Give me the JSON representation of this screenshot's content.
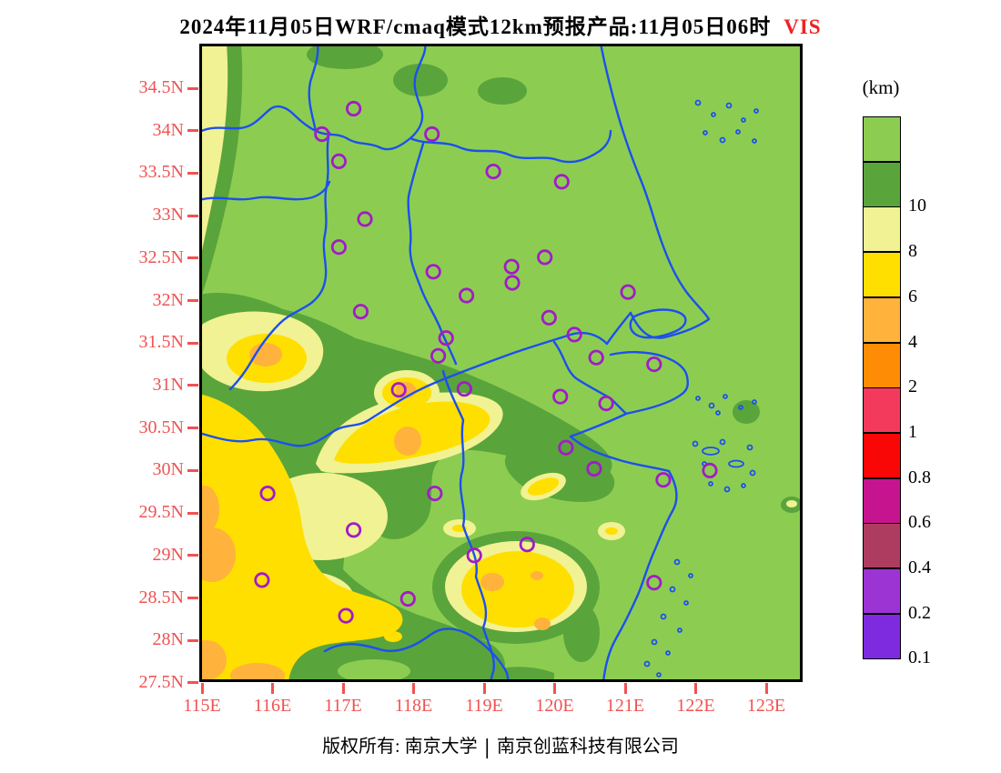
{
  "title": {
    "main": "2024年11月05日WRF/cmaq模式12km预报产品:11月05日06时",
    "highlight": "VIS"
  },
  "footer": {
    "left": "版权所有: 南京大学",
    "divider": "|",
    "right": "南京创蓝科技有限公司"
  },
  "legend": {
    "title": "(km)",
    "blocks": [
      {
        "color_key": "vis_gt10",
        "label": ""
      },
      {
        "color_key": "vis_8_10",
        "label": "10"
      },
      {
        "color_key": "vis_6_8",
        "label": "8"
      },
      {
        "color_key": "vis_4_6",
        "label": "6"
      },
      {
        "color_key": "vis_2_4",
        "label": "4"
      },
      {
        "color_key": "vis_1_2",
        "label": "2"
      },
      {
        "color_key": "vis_08_1",
        "label": "1"
      },
      {
        "color_key": "vis_06_08",
        "label": "0.8"
      },
      {
        "color_key": "vis_04_06",
        "label": "0.6"
      },
      {
        "color_key": "vis_02_04",
        "label": "0.4"
      },
      {
        "color_key": "vis_01_02",
        "label": "0.2"
      },
      {
        "color_key": "vis_lt01",
        "label": "0.1"
      }
    ]
  },
  "colors": {
    "axis_label": "#f15252",
    "title_text": "#000000",
    "title_highlight": "#ee2222",
    "frame": "#000000",
    "boundary_blue": "#1c50ee",
    "station_purple": "#a21bc8",
    "vis_gt10": "#8ccd51",
    "vis_8_10": "#5aa43c",
    "vis_6_8": "#f1f293",
    "vis_4_6": "#ffdf00",
    "vis_2_4": "#ffb23c",
    "vis_1_2": "#ff8c05",
    "vis_08_1": "#f43a5c",
    "vis_06_08": "#f90606",
    "vis_04_06": "#c6148e",
    "vis_02_04": "#ae3c60",
    "vis_01_02": "#9c34d4",
    "vis_lt01": "#7e2be0"
  },
  "axes": {
    "lon_min": 114.961,
    "lon_max": 123.516,
    "lat_min": 27.51,
    "lat_max": 35.025,
    "x_ticks": [
      {
        "label": "115E",
        "lon": 115
      },
      {
        "label": "116E",
        "lon": 116
      },
      {
        "label": "117E",
        "lon": 117
      },
      {
        "label": "118E",
        "lon": 118
      },
      {
        "label": "119E",
        "lon": 119
      },
      {
        "label": "120E",
        "lon": 120
      },
      {
        "label": "121E",
        "lon": 121
      },
      {
        "label": "122E",
        "lon": 122
      },
      {
        "label": "123E",
        "lon": 123
      }
    ],
    "y_ticks": [
      {
        "label": "34.5N",
        "lat": 34.5
      },
      {
        "label": "34N",
        "lat": 34.0
      },
      {
        "label": "33.5N",
        "lat": 33.5
      },
      {
        "label": "33N",
        "lat": 33.0
      },
      {
        "label": "32.5N",
        "lat": 32.5
      },
      {
        "label": "32N",
        "lat": 32.0
      },
      {
        "label": "31.5N",
        "lat": 31.5
      },
      {
        "label": "31N",
        "lat": 31.0
      },
      {
        "label": "30.5N",
        "lat": 30.5
      },
      {
        "label": "30N",
        "lat": 30.0
      },
      {
        "label": "29.5N",
        "lat": 29.5
      },
      {
        "label": "29N",
        "lat": 29.0
      },
      {
        "label": "28.5N",
        "lat": 28.5
      },
      {
        "label": "28N",
        "lat": 28.0
      },
      {
        "label": "27.5N",
        "lat": 27.5
      }
    ]
  },
  "stations": [
    {
      "lon": 117.15,
      "lat": 34.26
    },
    {
      "lon": 116.7,
      "lat": 33.96
    },
    {
      "lon": 118.26,
      "lat": 33.96
    },
    {
      "lon": 116.94,
      "lat": 33.64
    },
    {
      "lon": 119.13,
      "lat": 33.52
    },
    {
      "lon": 120.1,
      "lat": 33.4
    },
    {
      "lon": 117.31,
      "lat": 32.96
    },
    {
      "lon": 116.94,
      "lat": 32.63
    },
    {
      "lon": 119.86,
      "lat": 32.51
    },
    {
      "lon": 119.39,
      "lat": 32.4
    },
    {
      "lon": 119.4,
      "lat": 32.21
    },
    {
      "lon": 118.28,
      "lat": 32.34
    },
    {
      "lon": 118.75,
      "lat": 32.06
    },
    {
      "lon": 121.04,
      "lat": 32.1
    },
    {
      "lon": 117.25,
      "lat": 31.87
    },
    {
      "lon": 119.92,
      "lat": 31.8
    },
    {
      "lon": 120.28,
      "lat": 31.6
    },
    {
      "lon": 118.46,
      "lat": 31.56
    },
    {
      "lon": 118.35,
      "lat": 31.35
    },
    {
      "lon": 120.59,
      "lat": 31.33
    },
    {
      "lon": 121.41,
      "lat": 31.25
    },
    {
      "lon": 117.79,
      "lat": 30.95
    },
    {
      "lon": 118.72,
      "lat": 30.96
    },
    {
      "lon": 120.08,
      "lat": 30.87
    },
    {
      "lon": 120.73,
      "lat": 30.79
    },
    {
      "lon": 120.16,
      "lat": 30.27
    },
    {
      "lon": 120.56,
      "lat": 30.02
    },
    {
      "lon": 121.54,
      "lat": 29.89
    },
    {
      "lon": 122.2,
      "lat": 30.0
    },
    {
      "lon": 118.3,
      "lat": 29.73
    },
    {
      "lon": 115.93,
      "lat": 29.73
    },
    {
      "lon": 117.15,
      "lat": 29.3
    },
    {
      "lon": 119.61,
      "lat": 29.13
    },
    {
      "lon": 118.86,
      "lat": 29.0
    },
    {
      "lon": 117.92,
      "lat": 28.49
    },
    {
      "lon": 117.04,
      "lat": 28.29
    },
    {
      "lon": 115.85,
      "lat": 28.71
    },
    {
      "lon": 121.41,
      "lat": 28.68
    }
  ]
}
